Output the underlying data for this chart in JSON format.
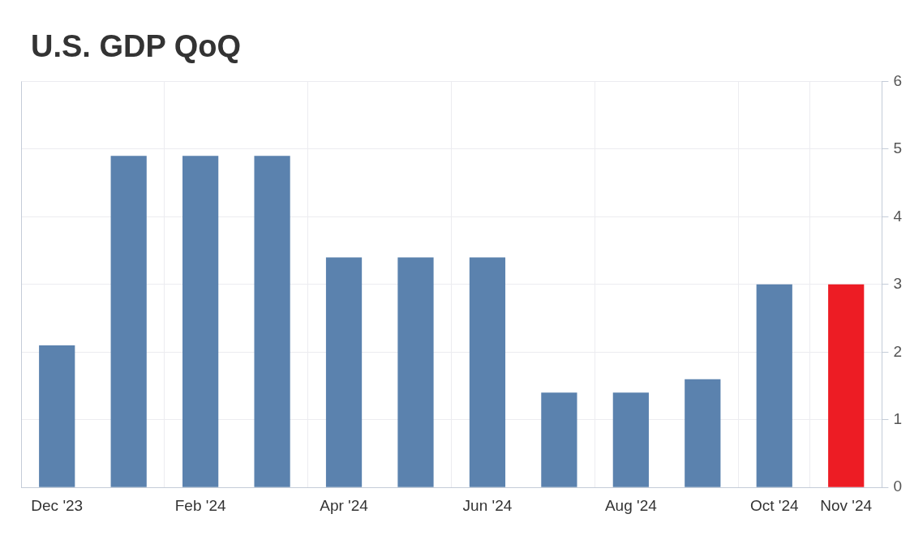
{
  "chart_data": {
    "type": "bar",
    "title": "U.S. GDP QoQ",
    "categories": [
      "Dec '23",
      null,
      "Feb '24",
      null,
      "Apr '24",
      null,
      "Jun '24",
      null,
      "Aug '24",
      null,
      "Oct '24",
      "Nov '24"
    ],
    "values": [
      2.1,
      4.9,
      4.9,
      4.9,
      3.4,
      3.4,
      3.4,
      1.4,
      1.4,
      1.6,
      3.0,
      3.0
    ],
    "colors": [
      "#5b82ae",
      "#5b82ae",
      "#5b82ae",
      "#5b82ae",
      "#5b82ae",
      "#5b82ae",
      "#5b82ae",
      "#5b82ae",
      "#5b82ae",
      "#5b82ae",
      "#5b82ae",
      "#ed1c24"
    ],
    "ylim": [
      0,
      6
    ],
    "yticks": [
      0,
      1,
      2,
      3,
      4,
      5,
      6
    ],
    "grid": true
  }
}
